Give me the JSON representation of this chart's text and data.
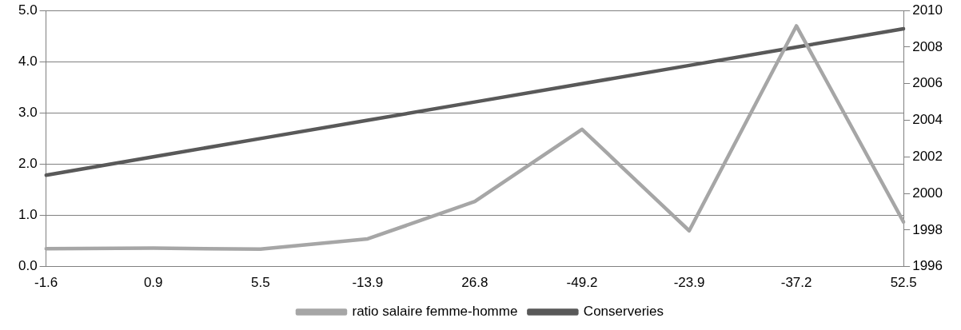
{
  "chart_data": {
    "type": "line",
    "categories": [
      "-1.6",
      "0.9",
      "5.5",
      "-13.9",
      "26.8",
      "-49.2",
      "-23.9",
      "-37.2",
      "52.5"
    ],
    "series": [
      {
        "name": "ratio salaire femme-homme",
        "color": "#a6a6a6",
        "values": [
          0.35,
          0.36,
          0.34,
          0.54,
          1.27,
          2.68,
          0.7,
          4.7,
          0.87
        ]
      },
      {
        "name": "Conserveries",
        "color": "#595959",
        "axis": "y2",
        "values": [
          2001,
          2002,
          2003,
          2004,
          2005,
          2006,
          2007,
          2008,
          2009
        ]
      }
    ],
    "ylim": [
      0,
      5
    ],
    "yticks": [
      {
        "value": 0,
        "label": "0.0"
      },
      {
        "value": 1,
        "label": "1.0"
      },
      {
        "value": 2,
        "label": "2.0"
      },
      {
        "value": 3,
        "label": "3.0"
      },
      {
        "value": 4,
        "label": "4.0"
      },
      {
        "value": 5,
        "label": "5.0"
      }
    ],
    "y2lim": [
      1996,
      2010
    ],
    "y2ticks": [
      1996,
      1998,
      2000,
      2002,
      2004,
      2006,
      2008,
      2010
    ],
    "grid": "y",
    "legend": "bottom",
    "marker": "none",
    "line_style": "solid"
  }
}
